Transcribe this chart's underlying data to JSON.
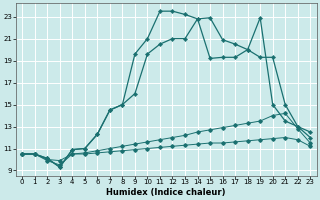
{
  "xlabel": "Humidex (Indice chaleur)",
  "ylabel": "",
  "bg_color": "#cceaea",
  "grid_color": "#ffffff",
  "line_color": "#1a7070",
  "xlim": [
    -0.5,
    23.5
  ],
  "ylim": [
    8.5,
    24.2
  ],
  "xticks": [
    0,
    1,
    2,
    3,
    4,
    5,
    6,
    7,
    8,
    9,
    10,
    11,
    12,
    13,
    14,
    15,
    16,
    17,
    18,
    19,
    20,
    21,
    22,
    23
  ],
  "yticks": [
    9,
    11,
    13,
    15,
    17,
    19,
    21,
    23
  ],
  "line1_x": [
    0,
    1,
    2,
    3,
    4,
    5,
    6,
    7,
    8,
    9,
    10,
    11,
    12,
    13,
    14,
    15,
    16,
    17,
    18,
    19,
    20,
    21,
    22,
    23
  ],
  "line1_y": [
    10.5,
    10.5,
    10.1,
    9.3,
    10.9,
    11.0,
    12.3,
    14.5,
    15.0,
    19.6,
    21.0,
    23.5,
    23.5,
    23.2,
    22.8,
    22.9,
    20.9,
    20.5,
    20.0,
    22.9,
    15.0,
    13.5,
    13.0,
    12.5
  ],
  "line2_x": [
    0,
    1,
    2,
    3,
    4,
    5,
    6,
    7,
    8,
    9,
    10,
    11,
    12,
    13,
    14,
    15,
    16,
    17,
    18,
    19,
    20,
    21,
    22,
    23
  ],
  "line2_y": [
    10.5,
    10.5,
    10.1,
    9.3,
    10.9,
    11.0,
    12.3,
    14.5,
    15.0,
    16.0,
    19.6,
    20.5,
    21.0,
    21.0,
    22.8,
    19.2,
    19.3,
    19.3,
    20.0,
    19.3,
    19.3,
    15.0,
    13.0,
    12.0
  ],
  "line3_x": [
    0,
    1,
    2,
    3,
    4,
    5,
    6,
    7,
    8,
    9,
    10,
    11,
    12,
    13,
    14,
    15,
    16,
    17,
    18,
    19,
    20,
    21,
    22,
    23
  ],
  "line3_y": [
    10.5,
    10.5,
    10.0,
    9.9,
    10.5,
    10.6,
    10.8,
    11.0,
    11.2,
    11.4,
    11.6,
    11.8,
    12.0,
    12.2,
    12.5,
    12.7,
    12.9,
    13.1,
    13.3,
    13.5,
    14.0,
    14.2,
    12.8,
    11.5
  ],
  "line4_x": [
    0,
    1,
    2,
    3,
    4,
    5,
    6,
    7,
    8,
    9,
    10,
    11,
    12,
    13,
    14,
    15,
    16,
    17,
    18,
    19,
    20,
    21,
    22,
    23
  ],
  "line4_y": [
    10.5,
    10.5,
    9.9,
    9.5,
    10.5,
    10.5,
    10.6,
    10.7,
    10.8,
    10.9,
    11.0,
    11.1,
    11.2,
    11.3,
    11.4,
    11.5,
    11.5,
    11.6,
    11.7,
    11.8,
    11.9,
    12.0,
    11.8,
    11.2
  ]
}
